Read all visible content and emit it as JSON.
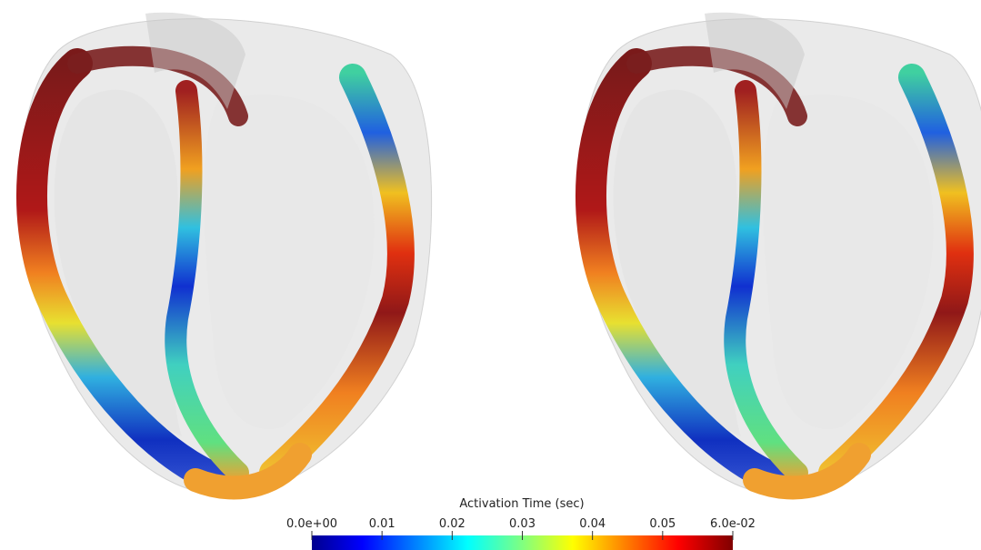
{
  "colorbar": {
    "title": "Activation Time (sec)",
    "ticks": [
      {
        "value": 0,
        "label": "0.0e+00"
      },
      0.01,
      0.02,
      0.03,
      0.04,
      0.05,
      {
        "value": 0.06,
        "label": "6.0e-02"
      }
    ]
  }
}
